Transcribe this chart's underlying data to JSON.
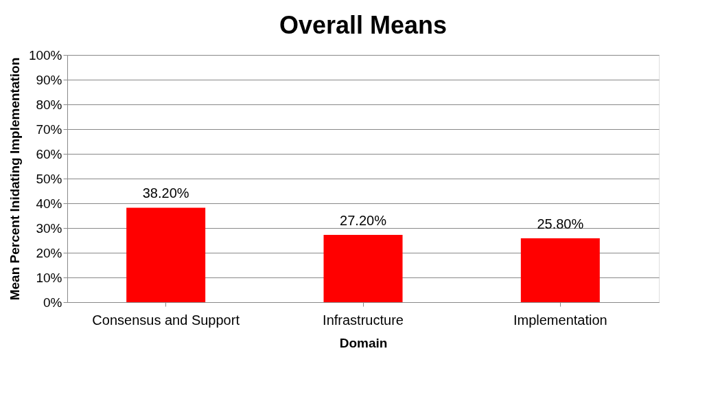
{
  "chart_data": {
    "type": "bar",
    "title": "Overall Means",
    "xlabel": "Domain",
    "ylabel": "Mean Percent Inidating Implementation",
    "categories": [
      "Consensus and Support",
      "Infrastructure",
      "Implementation"
    ],
    "values": [
      38.2,
      27.2,
      25.8
    ],
    "value_labels": [
      "38.20%",
      "27.20%",
      "25.80%"
    ],
    "color": "#ff0000",
    "ylim": [
      0,
      100
    ],
    "yticks": [
      {
        "value": 0,
        "label": "0%"
      },
      {
        "value": 10,
        "label": "10%"
      },
      {
        "value": 20,
        "label": "20%"
      },
      {
        "value": 30,
        "label": "30%"
      },
      {
        "value": 40,
        "label": "40%"
      },
      {
        "value": 50,
        "label": "50%"
      },
      {
        "value": 60,
        "label": "60%"
      },
      {
        "value": 70,
        "label": "70%"
      },
      {
        "value": 80,
        "label": "80%"
      },
      {
        "value": 90,
        "label": "90%"
      },
      {
        "value": 100,
        "label": "100%"
      }
    ],
    "grid": "y"
  }
}
